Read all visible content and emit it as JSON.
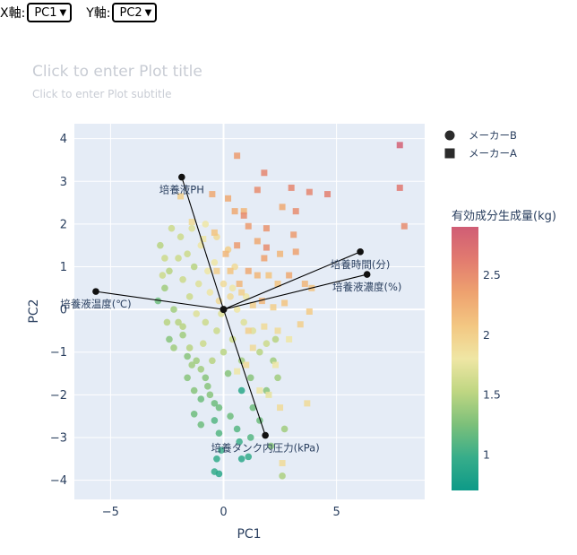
{
  "controls": {
    "x_label": "X軸:",
    "x_value": "PC1",
    "y_label": "Y軸:",
    "y_value": "PC2"
  },
  "chart_data": {
    "type": "scatter",
    "title": "Click to enter Plot title",
    "subtitle": "Click to enter Plot subtitle",
    "xlabel": "PC1",
    "ylabel": "PC2",
    "xlim": [
      -6.6,
      8.9
    ],
    "ylim": [
      -4.45,
      4.35
    ],
    "xticks": [
      -5,
      0,
      5
    ],
    "yticks": [
      -4,
      -3,
      -2,
      -1,
      0,
      1,
      2,
      3,
      4
    ],
    "grid": true,
    "legend_position": "top-right",
    "legend": [
      {
        "name": "メーカーB",
        "symbol": "circle"
      },
      {
        "name": "メーカーA",
        "symbol": "square"
      }
    ],
    "colorbar": {
      "title": "有効成分生成量(kg)",
      "min": 0.7,
      "max": 2.9,
      "ticks": [
        1,
        1.5,
        2,
        2.5
      ],
      "colors": [
        "#0d9a88",
        "#37ad8a",
        "#7cc07a",
        "#bfd682",
        "#efe6a4",
        "#f3c782",
        "#eea26f",
        "#e27b6f",
        "#d05d75"
      ]
    },
    "loadings": [
      {
        "label": "培養液PH",
        "x": -1.85,
        "y": 3.1
      },
      {
        "label": "培養時間(分)",
        "x": 6.05,
        "y": 1.35
      },
      {
        "label": "培養液濃度(%)",
        "x": 6.35,
        "y": 0.82
      },
      {
        "label": "培養液温度(℃)",
        "x": -5.65,
        "y": 0.42
      },
      {
        "label": "培養タンク内圧力(kPa)",
        "x": 1.85,
        "y": -2.95
      }
    ],
    "series": [
      {
        "name": "メーカーB",
        "points": [
          [
            -2.8,
            1.5,
            1.5
          ],
          [
            -2.6,
            1.2,
            1.6
          ],
          [
            -2.4,
            0.9,
            1.5
          ],
          [
            -2.6,
            0.5,
            1.4
          ],
          [
            -2.9,
            0.2,
            1.2
          ],
          [
            -2.2,
            0.0,
            1.4
          ],
          [
            -2.0,
            -0.3,
            1.5
          ],
          [
            -1.8,
            -0.6,
            1.4
          ],
          [
            -2.4,
            -0.7,
            1.3
          ],
          [
            -1.5,
            -0.9,
            1.5
          ],
          [
            -1.2,
            -1.2,
            1.4
          ],
          [
            -1.6,
            -1.1,
            1.3
          ],
          [
            -1.0,
            -1.4,
            1.4
          ],
          [
            -0.8,
            -1.6,
            1.3
          ],
          [
            -1.4,
            -1.3,
            1.4
          ],
          [
            -0.6,
            -2.0,
            1.3
          ],
          [
            -0.4,
            -2.2,
            1.2
          ],
          [
            -0.2,
            -2.3,
            1.2
          ],
          [
            -1.3,
            -1.9,
            1.3
          ],
          [
            -1.0,
            -2.1,
            1.2
          ],
          [
            -0.4,
            -2.6,
            1.1
          ],
          [
            0.3,
            -2.5,
            1.2
          ],
          [
            0.6,
            -2.8,
            1.1
          ],
          [
            -0.2,
            -2.9,
            1.1
          ],
          [
            0.7,
            -3.1,
            1.0
          ],
          [
            1.2,
            -3.0,
            1.1
          ],
          [
            1.6,
            -2.6,
            1.2
          ],
          [
            -0.1,
            -3.3,
            1.0
          ],
          [
            -0.3,
            -3.5,
            0.95
          ],
          [
            0.8,
            -3.5,
            0.9
          ],
          [
            1.1,
            -3.45,
            0.95
          ],
          [
            -0.4,
            -3.8,
            0.95
          ],
          [
            -0.2,
            -3.85,
            0.9
          ],
          [
            -1.0,
            -2.7,
            1.2
          ],
          [
            -1.3,
            -2.45,
            1.2
          ],
          [
            0.8,
            -1.9,
            0.9
          ],
          [
            0.2,
            -1.5,
            1.3
          ],
          [
            0.8,
            -1.2,
            1.4
          ],
          [
            1.2,
            -1.6,
            1.3
          ],
          [
            1.6,
            -1.0,
            1.5
          ],
          [
            1.9,
            -0.8,
            1.6
          ],
          [
            2.3,
            -0.7,
            1.5
          ],
          [
            2.2,
            -1.2,
            1.4
          ],
          [
            2.4,
            -1.6,
            1.4
          ],
          [
            -0.3,
            -0.5,
            1.6
          ],
          [
            -0.8,
            -0.3,
            1.6
          ],
          [
            -1.2,
            -0.1,
            1.7
          ],
          [
            -1.5,
            0.3,
            1.6
          ],
          [
            -1.1,
            0.6,
            1.7
          ],
          [
            -0.7,
            0.9,
            1.8
          ],
          [
            -1.3,
            1.0,
            1.5
          ],
          [
            -1.6,
            1.3,
            1.6
          ],
          [
            -1.9,
            1.7,
            1.6
          ],
          [
            -1.0,
            1.5,
            1.8
          ],
          [
            -0.4,
            1.1,
            1.8
          ],
          [
            0.0,
            0.6,
            1.9
          ],
          [
            0.3,
            0.3,
            1.9
          ],
          [
            0.6,
            0.0,
            1.8
          ],
          [
            0.9,
            -0.3,
            1.7
          ],
          [
            1.3,
            -0.5,
            1.7
          ],
          [
            0.4,
            -0.7,
            1.6
          ],
          [
            0.0,
            -1.0,
            1.5
          ],
          [
            -0.5,
            -1.2,
            1.5
          ],
          [
            -0.9,
            -0.8,
            1.6
          ],
          [
            -1.8,
            -0.4,
            1.5
          ],
          [
            -2.2,
            -0.9,
            1.4
          ],
          [
            -2.5,
            -0.3,
            1.5
          ],
          [
            -2.7,
            0.8,
            1.6
          ],
          [
            -2.0,
            1.2,
            1.6
          ],
          [
            -1.4,
            1.9,
            1.7
          ],
          [
            -0.8,
            2.0,
            1.8
          ],
          [
            -0.3,
            1.7,
            1.9
          ],
          [
            0.2,
            1.4,
            2.0
          ],
          [
            0.5,
            1.0,
            1.9
          ],
          [
            -0.2,
            0.2,
            1.9
          ],
          [
            -0.6,
            0.4,
            1.8
          ],
          [
            -1.8,
            0.7,
            1.6
          ],
          [
            -2.3,
            1.9,
            1.6
          ],
          [
            -1.6,
            -1.6,
            1.3
          ],
          [
            -0.7,
            -1.8,
            1.3
          ],
          [
            1.3,
            -2.3,
            1.2
          ],
          [
            1.9,
            -1.9,
            1.3
          ],
          [
            2.1,
            -3.2,
            1.3
          ],
          [
            2.7,
            -2.8,
            1.4
          ],
          [
            2.6,
            -3.9,
            1.45
          ],
          [
            -0.1,
            -0.1,
            1.7
          ],
          [
            0.4,
            0.5,
            1.8
          ],
          [
            1.0,
            0.3,
            1.8
          ]
        ]
      },
      {
        "name": "メーカーA",
        "points": [
          [
            7.8,
            3.85,
            2.85
          ],
          [
            7.8,
            2.85,
            2.65
          ],
          [
            8.0,
            1.95,
            2.5
          ],
          [
            4.6,
            2.7,
            2.6
          ],
          [
            3.8,
            2.75,
            2.55
          ],
          [
            3.0,
            2.85,
            2.55
          ],
          [
            3.2,
            2.3,
            2.5
          ],
          [
            3.1,
            1.75,
            2.4
          ],
          [
            3.2,
            1.35,
            2.35
          ],
          [
            3.6,
            0.6,
            2.2
          ],
          [
            3.9,
            0.5,
            2.1
          ],
          [
            3.8,
            -0.05,
            2.05
          ],
          [
            2.6,
            2.4,
            2.3
          ],
          [
            1.9,
            1.9,
            2.45
          ],
          [
            1.5,
            1.6,
            2.3
          ],
          [
            1.8,
            1.2,
            2.35
          ],
          [
            1.5,
            0.8,
            2.2
          ],
          [
            1.1,
            0.9,
            2.3
          ],
          [
            0.6,
            1.5,
            2.4
          ],
          [
            0.5,
            2.3,
            2.3
          ],
          [
            0.9,
            2.3,
            2.2
          ],
          [
            1.1,
            1.95,
            2.4
          ],
          [
            1.7,
            0.2,
            2.2
          ],
          [
            2.2,
            0.05,
            2.0
          ],
          [
            2.7,
            0.15,
            2.1
          ],
          [
            2.4,
            0.6,
            2.1
          ],
          [
            2.9,
            0.8,
            2.3
          ],
          [
            2.5,
            1.3,
            2.2
          ],
          [
            1.9,
            1.45,
            2.5
          ],
          [
            0.3,
            0.9,
            2.1
          ],
          [
            0.1,
            1.3,
            2.2
          ],
          [
            -0.4,
            1.8,
            2.1
          ],
          [
            -1.9,
            2.65,
            2.0
          ],
          [
            -1.4,
            2.05,
            1.9
          ],
          [
            -0.9,
            1.65,
            1.8
          ],
          [
            -0.3,
            0.9,
            2.0
          ],
          [
            0.8,
            0.4,
            2.0
          ],
          [
            1.3,
            0.1,
            2.0
          ],
          [
            1.8,
            -0.4,
            1.9
          ],
          [
            2.4,
            -0.5,
            1.9
          ],
          [
            2.9,
            -0.7,
            1.8
          ],
          [
            3.4,
            -0.35,
            2.0
          ],
          [
            2.3,
            -1.3,
            1.8
          ],
          [
            2.0,
            -2.0,
            1.75
          ],
          [
            1.6,
            -1.9,
            1.8
          ],
          [
            3.7,
            -2.2,
            1.9
          ],
          [
            2.5,
            -2.3,
            1.9
          ],
          [
            2.6,
            -3.6,
            1.9
          ],
          [
            0.6,
            -1.45,
            1.8
          ],
          [
            1.0,
            -1.3,
            1.9
          ],
          [
            1.3,
            -0.9,
            1.9
          ],
          [
            1.1,
            -0.5,
            2.0
          ],
          [
            0.7,
            0.6,
            2.2
          ],
          [
            2.0,
            0.8,
            2.1
          ],
          [
            0.9,
            2.2,
            2.5
          ],
          [
            1.5,
            2.8,
            2.5
          ],
          [
            0.6,
            3.6,
            2.4
          ],
          [
            1.8,
            3.2,
            2.55
          ],
          [
            -0.5,
            2.7,
            2.3
          ],
          [
            0.2,
            2.6,
            2.3
          ]
        ]
      }
    ]
  }
}
